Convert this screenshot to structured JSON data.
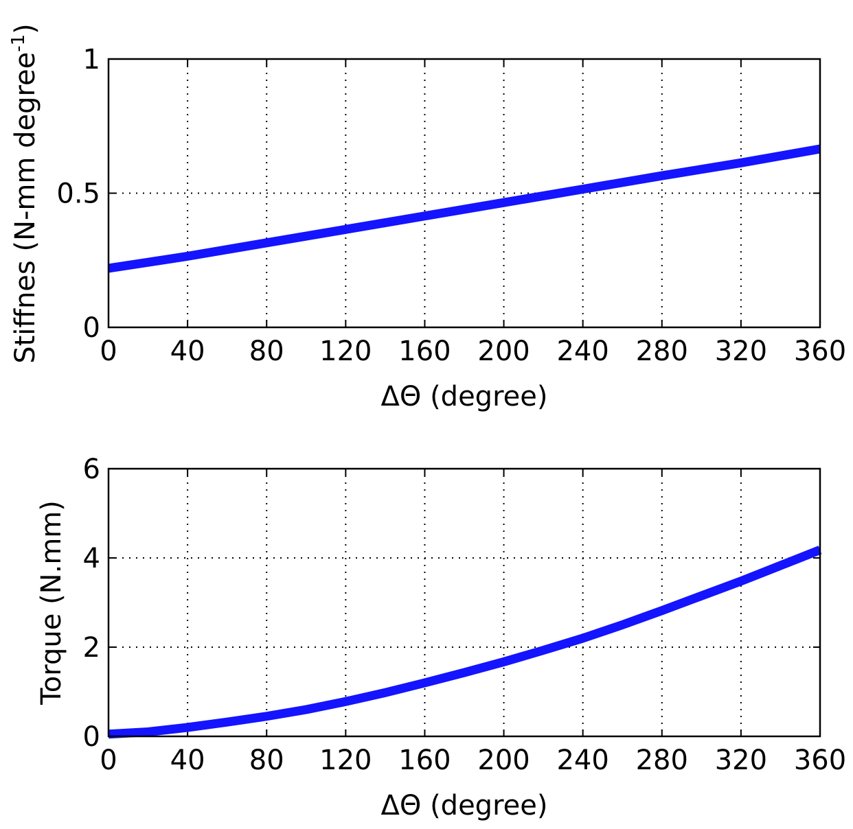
{
  "chart_data": [
    {
      "type": "line",
      "xlabel": "ΔΘ (degree)",
      "ylabel": "Stiffnes (N-mm degree",
      "ylabel_superscript": "-1",
      "ylabel_close": ")",
      "xlim": [
        0,
        360
      ],
      "ylim": [
        0,
        1
      ],
      "xticks": [
        0,
        40,
        80,
        120,
        160,
        200,
        240,
        280,
        320,
        360
      ],
      "xtick_labels": [
        "0",
        "40",
        "80",
        "120",
        "160",
        "200",
        "240",
        "280",
        "320",
        "360"
      ],
      "yticks": [
        0,
        0.5,
        1
      ],
      "ytick_labels": [
        "0",
        "0.5",
        "1"
      ],
      "grid": true,
      "series": [
        {
          "color": "#1414ff",
          "x": [
            0,
            40,
            80,
            120,
            160,
            200,
            240,
            280,
            320,
            360
          ],
          "y": [
            0.22,
            0.265,
            0.315,
            0.365,
            0.415,
            0.465,
            0.515,
            0.565,
            0.613,
            0.665
          ]
        }
      ]
    },
    {
      "type": "line",
      "xlabel": "ΔΘ (degree)",
      "ylabel": "Torque (N.mm)",
      "xlim": [
        0,
        360
      ],
      "ylim": [
        0,
        6
      ],
      "xticks": [
        0,
        40,
        80,
        120,
        160,
        200,
        240,
        280,
        320,
        360
      ],
      "xtick_labels": [
        "0",
        "40",
        "80",
        "120",
        "160",
        "200",
        "240",
        "280",
        "320",
        "360"
      ],
      "yticks": [
        0,
        2,
        4,
        6
      ],
      "ytick_labels": [
        "0",
        "2",
        "4",
        "6"
      ],
      "grid": true,
      "series": [
        {
          "color": "#1414ff",
          "x": [
            0,
            20,
            40,
            60,
            80,
            100,
            120,
            140,
            160,
            180,
            200,
            220,
            240,
            260,
            280,
            300,
            320,
            340,
            360
          ],
          "y": [
            0.05,
            0.1,
            0.2,
            0.32,
            0.45,
            0.6,
            0.78,
            0.98,
            1.2,
            1.43,
            1.67,
            1.93,
            2.2,
            2.5,
            2.82,
            3.15,
            3.48,
            3.83,
            4.18
          ]
        }
      ]
    }
  ]
}
